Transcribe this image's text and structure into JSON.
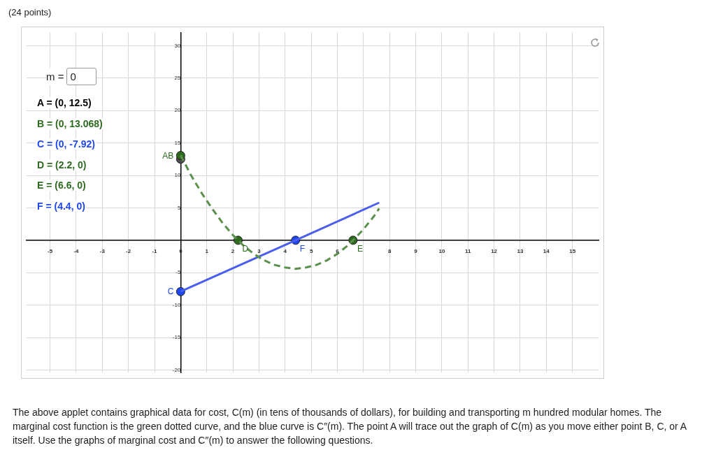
{
  "chart_data": {
    "type": "line",
    "title": "(24 points)",
    "xlim": [
      -5.9,
      16
    ],
    "ylim": [
      -20.4,
      32
    ],
    "xticks": [
      -5,
      -4,
      -3,
      -2,
      -1,
      0,
      1,
      2,
      3,
      4,
      5,
      6,
      {
        "value": 7,
        "label": null
      },
      8,
      9,
      10,
      11,
      12,
      13,
      14,
      15
    ],
    "yticks": [
      -20,
      -15,
      -10,
      -5,
      {
        "value": 0,
        "label": null
      },
      5,
      10,
      15,
      20,
      25,
      30
    ],
    "grid": true,
    "legend": false,
    "series": [
      {
        "type": "line",
        "color": "#5b8f4c",
        "line_style": "dashed",
        "marker": "none",
        "x": [
          0,
          0.4,
          0.8,
          1.2,
          1.6,
          2.0,
          2.2,
          2.4,
          2.8,
          3.2,
          3.6,
          4.0,
          4.4,
          4.8,
          5.2,
          5.6,
          6.0,
          6.4,
          6.6,
          7.0,
          7.4,
          7.6
        ],
        "values": [
          13.1,
          10.0,
          7.3,
          4.9,
          2.7,
          0.8,
          0,
          -0.8,
          -2.1,
          -3.1,
          -3.8,
          -4.2,
          -4.4,
          -4.2,
          -3.8,
          -3.1,
          -2.1,
          -0.8,
          0,
          1.7,
          3.7,
          4.9
        ]
      },
      {
        "type": "line",
        "color": "#4a5ef0",
        "line_style": "solid",
        "marker": "none",
        "x": [
          0,
          4.4,
          7.6
        ],
        "values": [
          -7.9,
          0,
          5.8
        ]
      },
      {
        "type": "scatter",
        "marker": "circle",
        "x": [
          0,
          0,
          0,
          2.2,
          6.6,
          4.4
        ],
        "values": [
          12.5,
          13.068,
          -7.92,
          0,
          0,
          0
        ],
        "colors": [
          "#4d4d4d",
          "#2d6a1f",
          "#1f47f0",
          "#2d6a1f",
          "#2d6a1f",
          "#1f47f0"
        ]
      }
    ],
    "annotations": [
      "m =",
      "0",
      "A = (0, 12.5)",
      "B = (0, 13.068)",
      "C = (0, -7.92)",
      "D = (2.2, 0)",
      "E = (6.6, 0)",
      "F = (4.4, 0)",
      {
        "text": "AB",
        "x": 0,
        "y": 13.068
      },
      {
        "text": "C",
        "x": 0,
        "y": -7.92
      },
      {
        "text": "D",
        "x": 2.2,
        "y": 0
      },
      {
        "text": "E",
        "x": 6.6,
        "y": 0
      },
      {
        "text": "F",
        "x": 4.4,
        "y": 0
      },
      "The above applet contains graphical data for cost, C(m) (in tens of thousands of dollars), for building and transporting m hundred modular homes. The marginal cost function is the green dotted curve, and the blue curve is C″(m). The point A will trace out the graph of C(m) as you move either point B, C, or A itself. Use the graphs of marginal cost and C″(m) to answer the following questions."
    ]
  }
}
